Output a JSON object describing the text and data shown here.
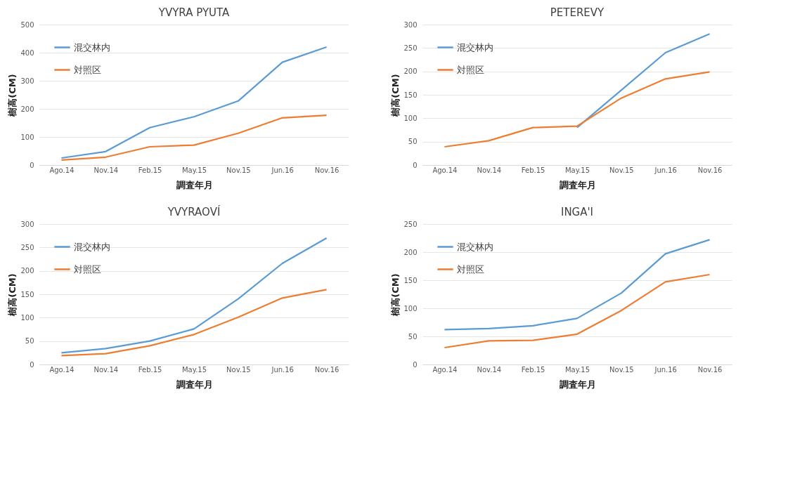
{
  "chart_data": [
    {
      "type": "line",
      "title": "YVYRA PYUTA",
      "xlabel": "調査年月",
      "ylabel": "樹高(CM)",
      "categories": [
        "Ago.14",
        "Nov.14",
        "Feb.15",
        "May.15",
        "Nov.15",
        "Jun.16",
        "Nov.16"
      ],
      "ylim": [
        0,
        500
      ],
      "yticks": [
        0,
        100,
        200,
        300,
        400,
        500
      ],
      "grid": "y",
      "legend": "top left",
      "series": [
        {
          "name": "混交林内",
          "color": "#5b9bd5",
          "values": [
            25,
            48,
            133,
            172,
            228,
            366,
            420
          ]
        },
        {
          "name": "対照区",
          "color": "#ed7d31",
          "values": [
            18,
            28,
            65,
            71,
            113,
            168,
            177
          ]
        }
      ]
    },
    {
      "type": "line",
      "title": "PETEREVY",
      "xlabel": "調査年月",
      "ylabel": "樹高(CM)",
      "categories": [
        "Ago.14",
        "Nov.14",
        "Feb.15",
        "May.15",
        "Nov.15",
        "Jun.16",
        "Nov.16"
      ],
      "ylim": [
        0,
        300
      ],
      "yticks": [
        0,
        50,
        100,
        150,
        200,
        250,
        300
      ],
      "grid": "y",
      "legend": "top left",
      "series": [
        {
          "name": "混交林内",
          "color": "#5b9bd5",
          "values": [
            null,
            null,
            null,
            80,
            160,
            240,
            280
          ]
        },
        {
          "name": "対照区",
          "color": "#ed7d31",
          "values": [
            39,
            52,
            80,
            83,
            143,
            184,
            199
          ]
        }
      ]
    },
    {
      "type": "line",
      "title": "YVYRAOVÍ",
      "xlabel": "調査年月",
      "ylabel": "樹高(CM)",
      "categories": [
        "Ago.14",
        "Nov.14",
        "Feb.15",
        "May.15",
        "Nov.15",
        "Jun.16",
        "Nov.16"
      ],
      "ylim": [
        0,
        300
      ],
      "yticks": [
        0,
        50,
        100,
        150,
        200,
        250,
        300
      ],
      "grid": "y",
      "legend": "top left",
      "series": [
        {
          "name": "混交林内",
          "color": "#5b9bd5",
          "values": [
            25,
            34,
            50,
            76,
            140,
            216,
            270
          ]
        },
        {
          "name": "対照区",
          "color": "#ed7d31",
          "values": [
            19,
            23,
            40,
            64,
            101,
            142,
            160
          ]
        }
      ]
    },
    {
      "type": "line",
      "title": "INGA'I",
      "xlabel": "調査年月",
      "ylabel": "樹高(CM)",
      "categories": [
        "Ago.14",
        "Nov.14",
        "Feb.15",
        "May.15",
        "Nov.15",
        "Jun.16",
        "Nov.16"
      ],
      "ylim": [
        0,
        250
      ],
      "yticks": [
        0,
        50,
        100,
        150,
        200,
        250
      ],
      "grid": "y",
      "legend": "top left",
      "series": [
        {
          "name": "混交林内",
          "color": "#5b9bd5",
          "values": [
            62,
            64,
            69,
            82,
            127,
            197,
            222
          ]
        },
        {
          "name": "対照区",
          "color": "#ed7d31",
          "values": [
            30,
            42,
            43,
            54,
            96,
            147,
            160
          ]
        }
      ]
    }
  ]
}
